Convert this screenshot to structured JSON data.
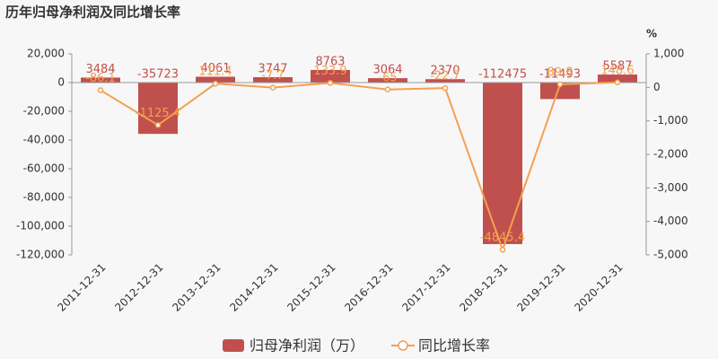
{
  "chart_data": {
    "type": "bar",
    "title": "历年归母净利润及同比增长率",
    "y2_unit": "%",
    "categories": [
      "2011-12-31",
      "2012-12-31",
      "2013-12-31",
      "2014-12-31",
      "2015-12-31",
      "2016-12-31",
      "2017-12-31",
      "2018-12-31",
      "2019-12-31",
      "2020-12-31"
    ],
    "series": [
      {
        "name": "归母净利润（万）",
        "type": "bar",
        "color": "#c0504d",
        "values": [
          3484,
          -35723,
          4061,
          3747,
          8763,
          3064,
          2370,
          -112475,
          -11493,
          5587
        ]
      },
      {
        "name": "同比增长率",
        "type": "line",
        "axis": "y2",
        "color": "#f4a050",
        "values": [
          -86.1,
          -1125.4,
          111.4,
          -7.7,
          133.9,
          -65,
          -22.7,
          -4845.4,
          89.8,
          148.6
        ]
      }
    ],
    "ylim": [
      -120000,
      20000
    ],
    "yticks": [
      {
        "value": 20000,
        "label": "20,000"
      },
      0,
      {
        "value": -20000,
        "label": "-20,000"
      },
      {
        "value": -40000,
        "label": "-40,000"
      },
      {
        "value": -60000,
        "label": "-60,000"
      },
      {
        "value": -80000,
        "label": "-80,000"
      },
      {
        "value": -100000,
        "label": "-100,000"
      },
      {
        "value": -120000,
        "label": "-120,000"
      }
    ],
    "y2lim": [
      -5000,
      1000
    ],
    "y2ticks": [
      {
        "value": 1000,
        "label": "1,000"
      },
      0,
      {
        "value": -1000,
        "label": "-1,000"
      },
      {
        "value": -2000,
        "label": "-2,000"
      },
      {
        "value": -3000,
        "label": "-3,000"
      },
      {
        "value": -4000,
        "label": "-4,000"
      },
      {
        "value": -5000,
        "label": "-5,000"
      }
    ]
  }
}
